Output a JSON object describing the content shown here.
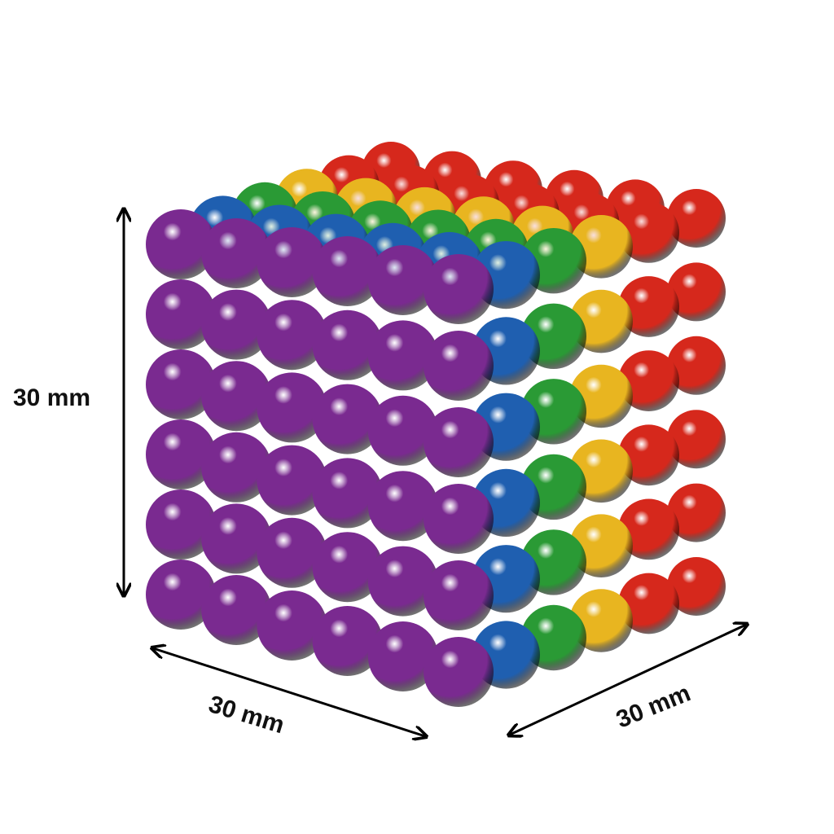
{
  "dimensions": {
    "height_label": "30 mm",
    "width_label": "30 mm",
    "depth_label": "30 mm"
  },
  "cube": {
    "grid": 6,
    "layer_colors_front_to_back": [
      "#7a2a90",
      "#1f5fb0",
      "#2a9a35",
      "#e8b520",
      "#d6281c",
      "#d6281c"
    ]
  }
}
